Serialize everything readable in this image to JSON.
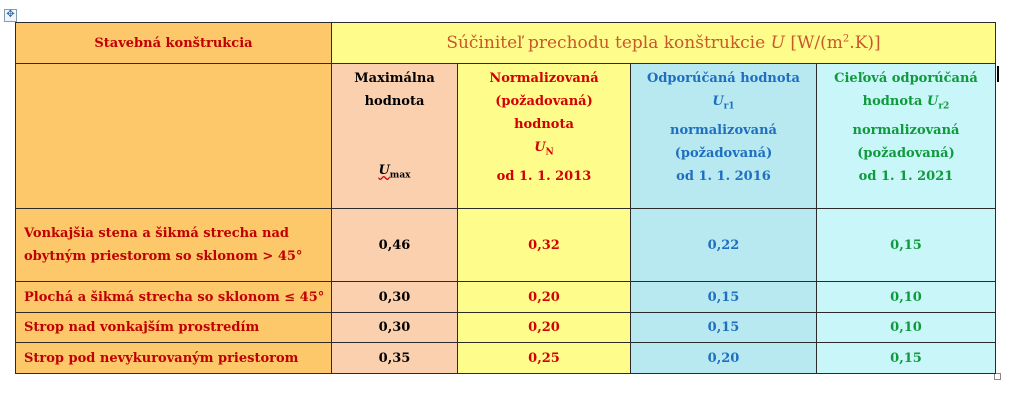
{
  "table": {
    "corner_header": "Stavebná konštrukcia",
    "title": {
      "text": "Súčiniteľ prechodu tepla konštrukcie ",
      "symbol": "U",
      "unit_prefix": " [W/(m",
      "unit_exp": "2",
      "unit_suffix": ".K)]"
    },
    "columns": {
      "max": {
        "line1": "Maximálna",
        "line2": "hodnota",
        "symbol": "U",
        "symbol_sub": "max"
      },
      "norm": {
        "line1": "Normalizovaná",
        "line2": "(požadovaná)",
        "line3": "hodnota",
        "symbol": "U",
        "symbol_sub": "N",
        "date": "od 1. 1. 2013"
      },
      "rec": {
        "line1": "Odporúčaná hodnota",
        "symbol": "U",
        "symbol_sub": "r1",
        "line2": "normalizovaná",
        "line3": "(požadovaná)",
        "date": "od 1. 1. 2016"
      },
      "tgt": {
        "line1": "Cieľová odporúčaná",
        "line2_prefix": "hodnota ",
        "symbol": "U",
        "symbol_sub": "r2",
        "line3": "normalizovaná",
        "line4": "(požadovaná)",
        "date": "od 1. 1. 2021"
      }
    },
    "rows": [
      {
        "label_l1": "Vonkajšia stena a šikmá strecha nad",
        "label_l2": "obytným priestorom so sklonom > 45°",
        "max": "0,46",
        "norm": "0,32",
        "rec": "0,22",
        "tgt": "0,15"
      },
      {
        "label_l1": "Plochá a šikmá strecha so sklonom ≤ 45°",
        "label_l2": "",
        "max": "0,30",
        "norm": "0,20",
        "rec": "0,15",
        "tgt": "0,10"
      },
      {
        "label_l1": "Strop nad vonkajším prostredím",
        "label_l2": "",
        "max": "0,30",
        "norm": "0,20",
        "rec": "0,15",
        "tgt": "0,10"
      },
      {
        "label_l1": "Strop pod nevykurovaným priestorom",
        "label_l2": "",
        "max": "0,35",
        "norm": "0,25",
        "rec": "0,20",
        "tgt": "0,15"
      }
    ]
  }
}
